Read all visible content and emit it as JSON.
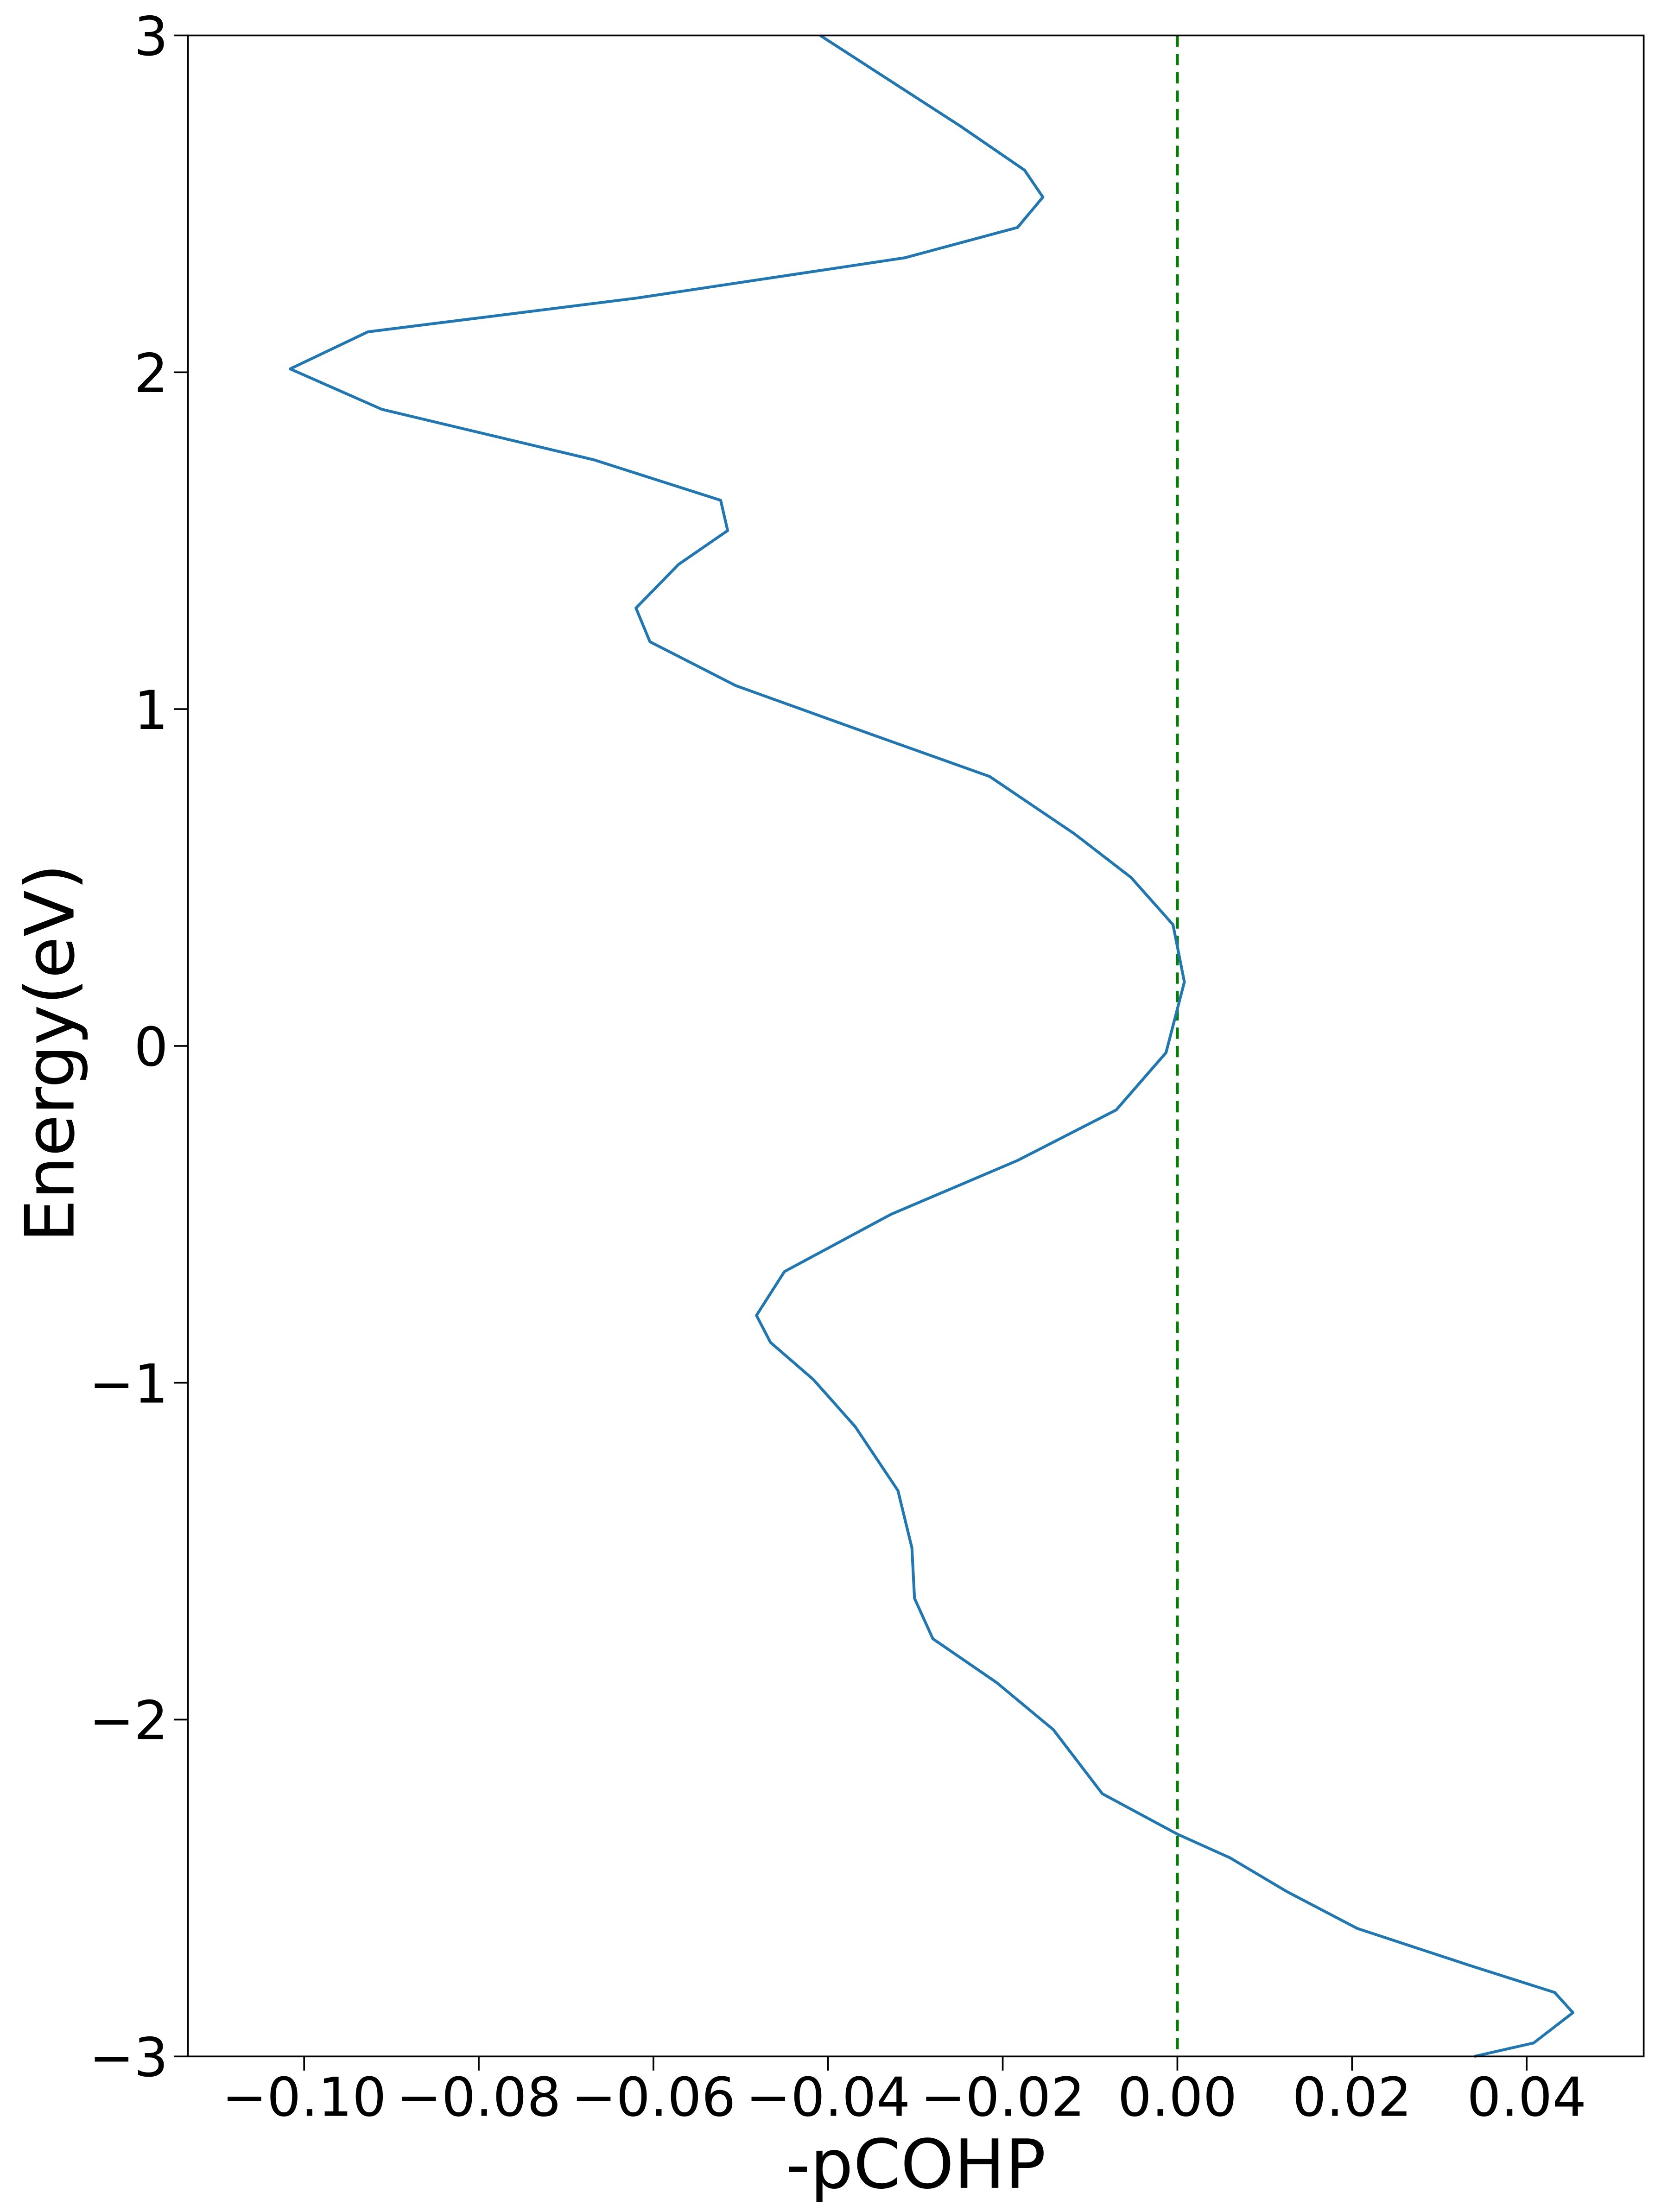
{
  "chart_data": {
    "type": "line",
    "xlabel": "-pCOHP",
    "ylabel": "Energy(eV)",
    "y": [
      -3,
      -2.96,
      -2.87,
      -2.81,
      -2.73,
      -2.62,
      -2.51,
      -2.41,
      -2.34,
      -2.22,
      -2.03,
      -1.89,
      -1.76,
      -1.64,
      -1.49,
      -1.32,
      -1.13,
      -0.99,
      -0.88,
      -0.8,
      -0.67,
      -0.5,
      -0.34,
      -0.19,
      -0.02,
      0.19,
      0.36,
      0.5,
      0.63,
      0.8,
      0.92,
      1.07,
      1.2,
      1.3,
      1.43,
      1.53,
      1.62,
      1.74,
      1.89,
      2.01,
      2.12,
      2.22,
      2.34,
      2.43,
      2.52,
      2.6,
      2.73,
      3
    ],
    "values": [
      0.034,
      0.0408,
      0.0453,
      0.0432,
      0.0335,
      0.0206,
      0.0125,
      0.006,
      0,
      -0.0086,
      -0.0142,
      -0.0207,
      -0.028,
      -0.0301,
      -0.0304,
      -0.032,
      -0.0369,
      -0.0417,
      -0.0466,
      -0.0482,
      -0.045,
      -0.0328,
      -0.0183,
      -0.007,
      -0.0013,
      0.0008,
      -0.0005,
      -0.0053,
      -0.0118,
      -0.0215,
      -0.0345,
      -0.0506,
      -0.0604,
      -0.062,
      -0.0571,
      -0.0515,
      -0.0523,
      -0.0668,
      -0.0911,
      -0.1016,
      -0.0927,
      -0.062,
      -0.0312,
      -0.0183,
      -0.0154,
      -0.0175,
      -0.0248,
      -0.0409
    ],
    "color": "#1f77b4",
    "vline": {
      "value": 0,
      "color": "#008000"
    },
    "xlim": [
      -0.1133,
      0.0534
    ],
    "xticks": [
      {
        "value": -0.1,
        "label": "−0.10"
      },
      {
        "value": -0.08,
        "label": "−0.08"
      },
      {
        "value": -0.06,
        "label": "−0.06"
      },
      {
        "value": -0.04,
        "label": "−0.04"
      },
      {
        "value": -0.02,
        "label": "−0.02"
      },
      {
        "value": 0,
        "label": "0.00"
      },
      {
        "value": 0.02,
        "label": "0.02"
      },
      {
        "value": 0.04,
        "label": "0.04"
      }
    ],
    "ylim": [
      -3,
      3
    ],
    "yticks": [
      {
        "value": -3,
        "label": "−3"
      },
      {
        "value": -2,
        "label": "−2"
      },
      {
        "value": -1,
        "label": "−1"
      },
      0,
      1,
      2,
      3
    ],
    "grid": false
  }
}
